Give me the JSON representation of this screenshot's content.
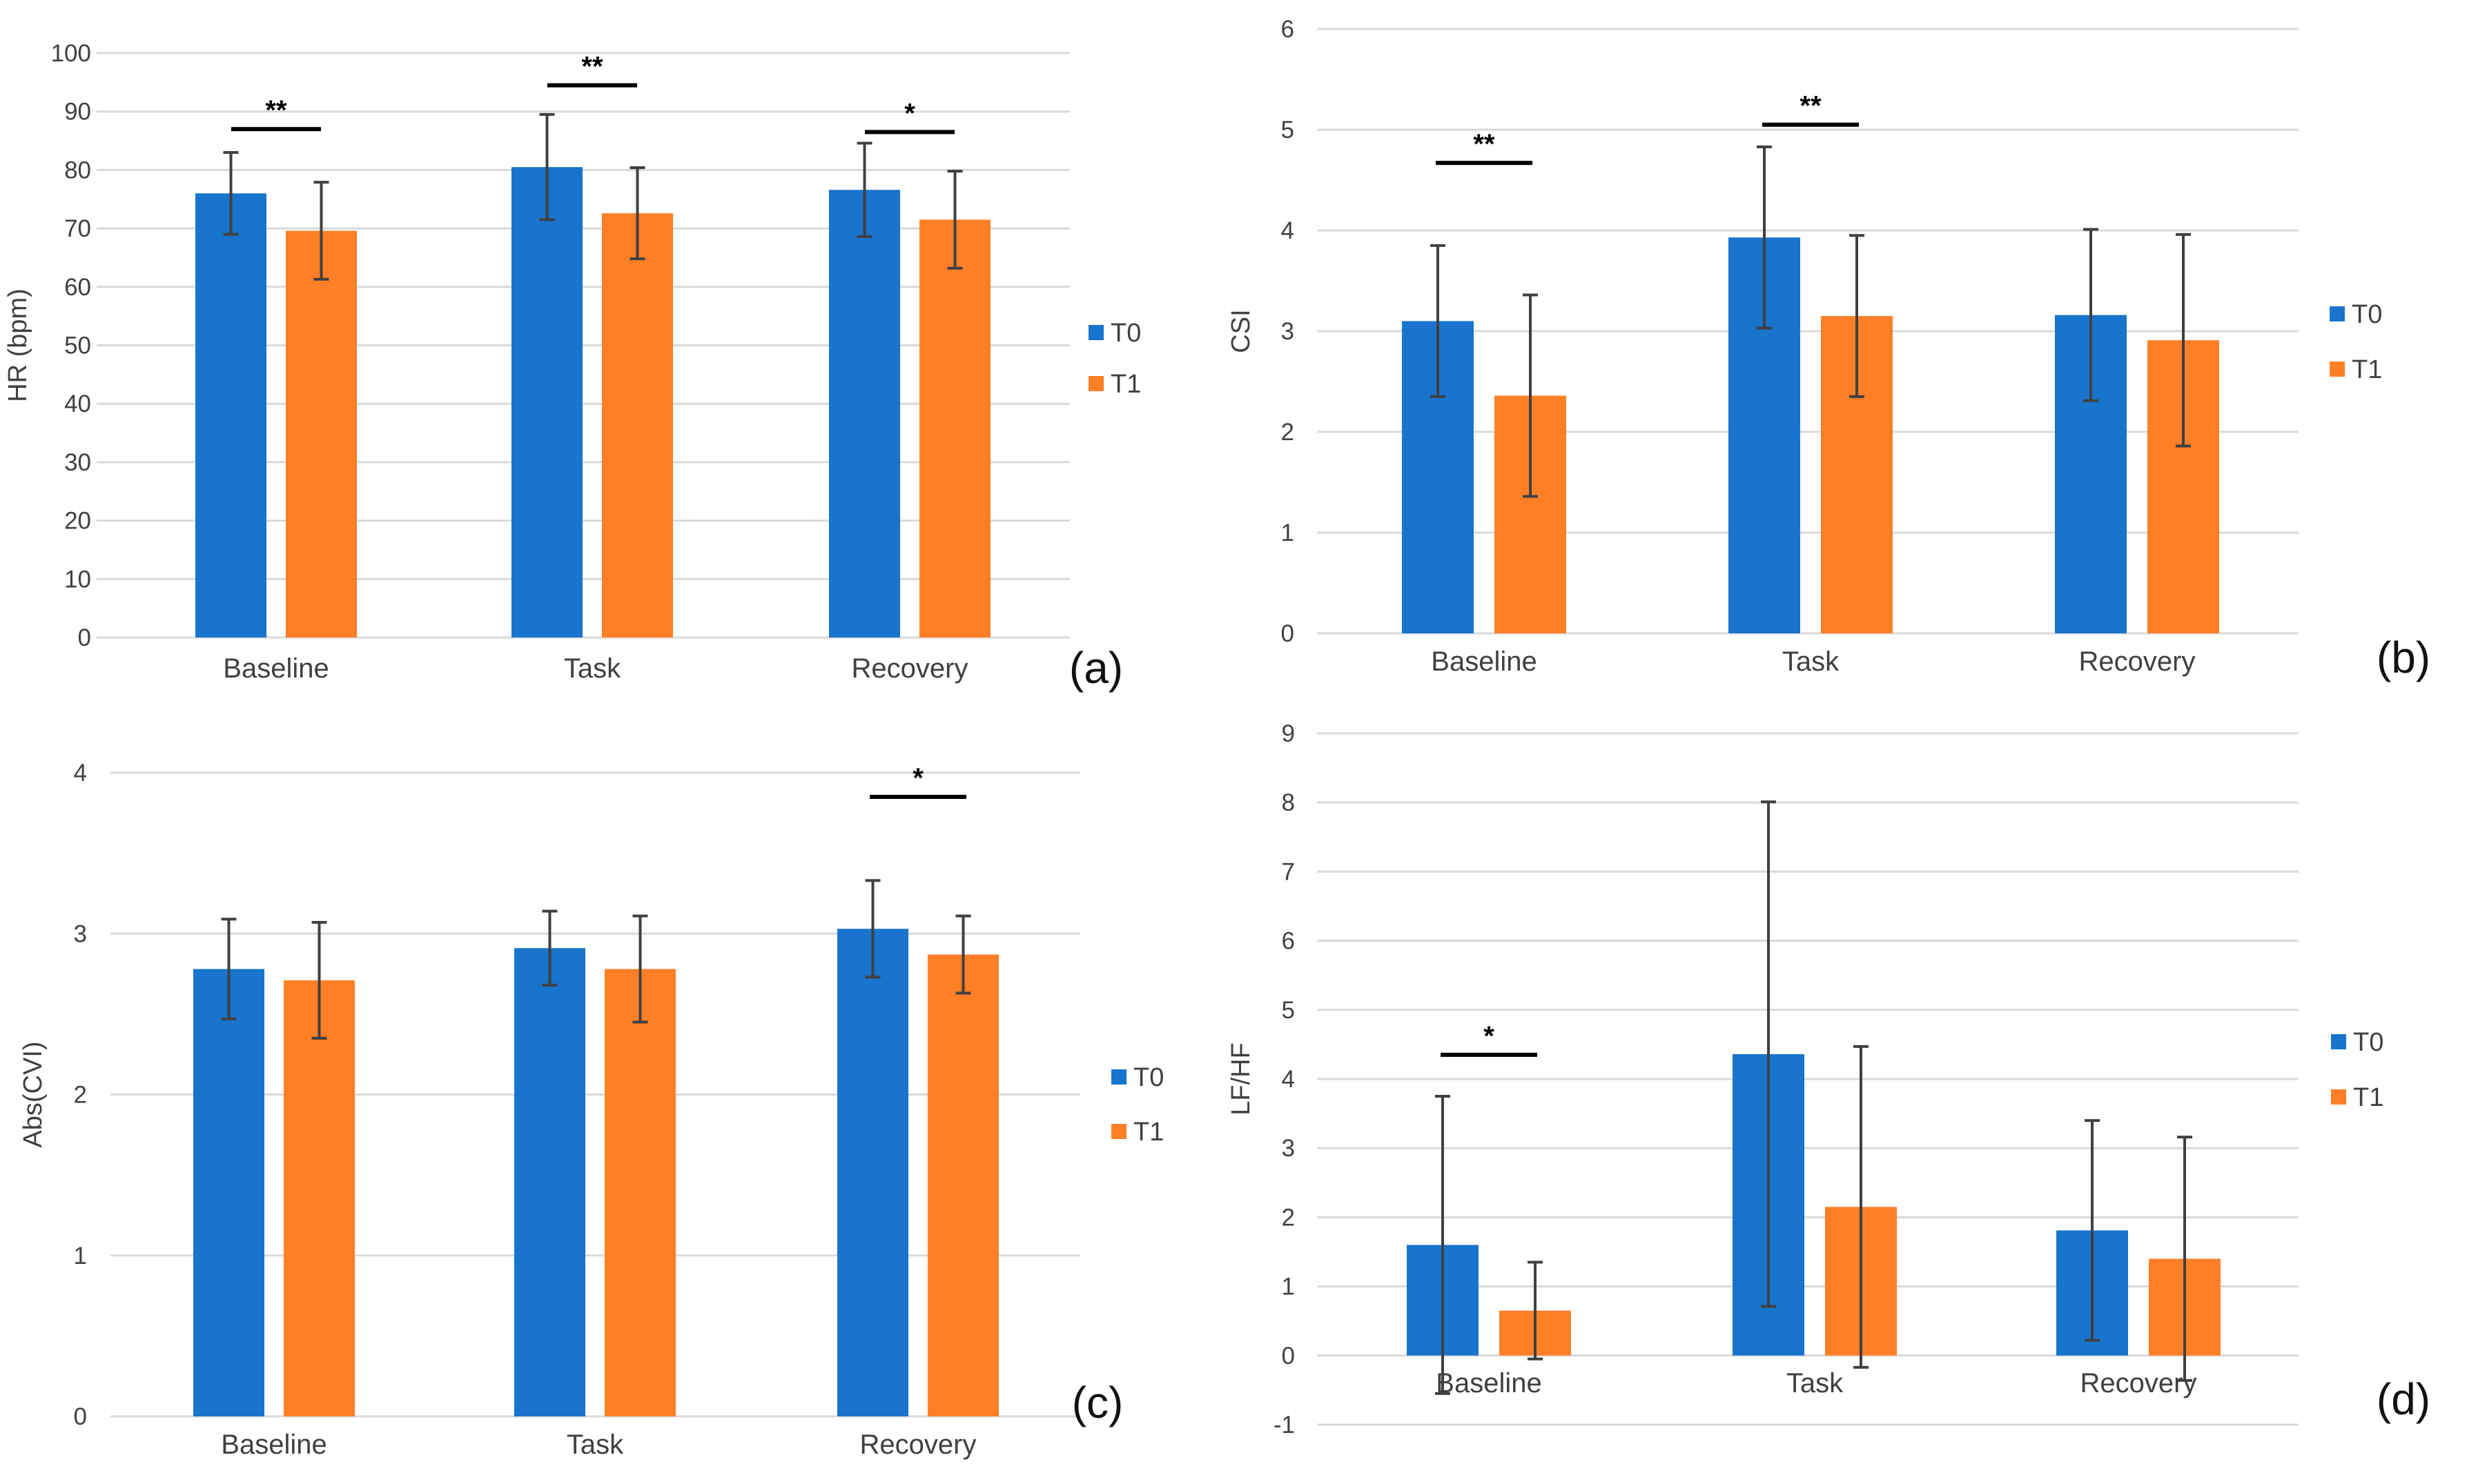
{
  "colors": {
    "T0": "#1874CD",
    "T1": "#FF7F27"
  },
  "chart_data": [
    {
      "id": "a",
      "type": "bar",
      "panel_label": "(a)",
      "ylabel": "HR (bpm)",
      "ylim": [
        0,
        100
      ],
      "yticks": [
        0,
        10,
        20,
        30,
        40,
        50,
        60,
        70,
        80,
        90,
        100
      ],
      "categories": [
        "Baseline",
        "Task",
        "Recovery"
      ],
      "series": [
        {
          "name": "T0",
          "values": [
            76,
            80.5,
            76.6
          ],
          "errors": [
            7,
            9,
            8
          ]
        },
        {
          "name": "T1",
          "values": [
            69.6,
            72.6,
            71.5
          ],
          "errors": [
            8.3,
            7.8,
            8.3
          ]
        }
      ],
      "significance": [
        {
          "category": 0,
          "label": "**",
          "y": 87
        },
        {
          "category": 1,
          "label": "**",
          "y": 94.5
        },
        {
          "category": 2,
          "label": "*",
          "y": 86.5
        }
      ],
      "legend": [
        "T0",
        "T1"
      ]
    },
    {
      "id": "b",
      "type": "bar",
      "panel_label": "(b)",
      "ylabel": "CSI",
      "ylim": [
        0,
        6
      ],
      "yticks": [
        0,
        1,
        2,
        3,
        4,
        5,
        6
      ],
      "categories": [
        "Baseline",
        "Task",
        "Recovery"
      ],
      "series": [
        {
          "name": "T0",
          "values": [
            3.1,
            3.93,
            3.16
          ],
          "errors": [
            0.75,
            0.9,
            0.85
          ]
        },
        {
          "name": "T1",
          "values": [
            2.36,
            3.15,
            2.91
          ],
          "errors": [
            1.0,
            0.8,
            1.05
          ]
        }
      ],
      "significance": [
        {
          "category": 0,
          "label": "**",
          "y": 4.67
        },
        {
          "category": 1,
          "label": "**",
          "y": 5.05
        }
      ],
      "legend": [
        "T0",
        "T1"
      ]
    },
    {
      "id": "c",
      "type": "bar",
      "panel_label": "(c)",
      "ylabel": "Abs(CVI)",
      "ylim": [
        0,
        4
      ],
      "yticks": [
        0,
        1,
        2,
        3,
        4
      ],
      "categories": [
        "Baseline",
        "Task",
        "Recovery"
      ],
      "series": [
        {
          "name": "T0",
          "values": [
            2.78,
            2.91,
            3.03
          ],
          "errors": [
            0.31,
            0.23,
            0.3
          ]
        },
        {
          "name": "T1",
          "values": [
            2.71,
            2.78,
            2.87
          ],
          "errors": [
            0.36,
            0.33,
            0.24
          ]
        }
      ],
      "significance": [
        {
          "category": 2,
          "label": "*",
          "y": 3.85
        }
      ],
      "legend": [
        "T0",
        "T1"
      ]
    },
    {
      "id": "d",
      "type": "bar",
      "panel_label": "(d)",
      "ylabel": "LF/HF",
      "ylim": [
        -1,
        9
      ],
      "yticks": [
        -1,
        0,
        1,
        2,
        3,
        4,
        5,
        6,
        7,
        8,
        9
      ],
      "categories": [
        "Baseline",
        "Task",
        "Recovery"
      ],
      "series": [
        {
          "name": "T0",
          "values": [
            1.6,
            4.36,
            1.81
          ],
          "errors": [
            2.15,
            3.65,
            1.59
          ]
        },
        {
          "name": "T1",
          "values": [
            0.65,
            2.15,
            1.4
          ],
          "errors": [
            0.7,
            2.32,
            1.76
          ]
        }
      ],
      "significance": [
        {
          "category": 0,
          "label": "*",
          "y": 4.35
        }
      ],
      "legend": [
        "T0",
        "T1"
      ]
    }
  ]
}
